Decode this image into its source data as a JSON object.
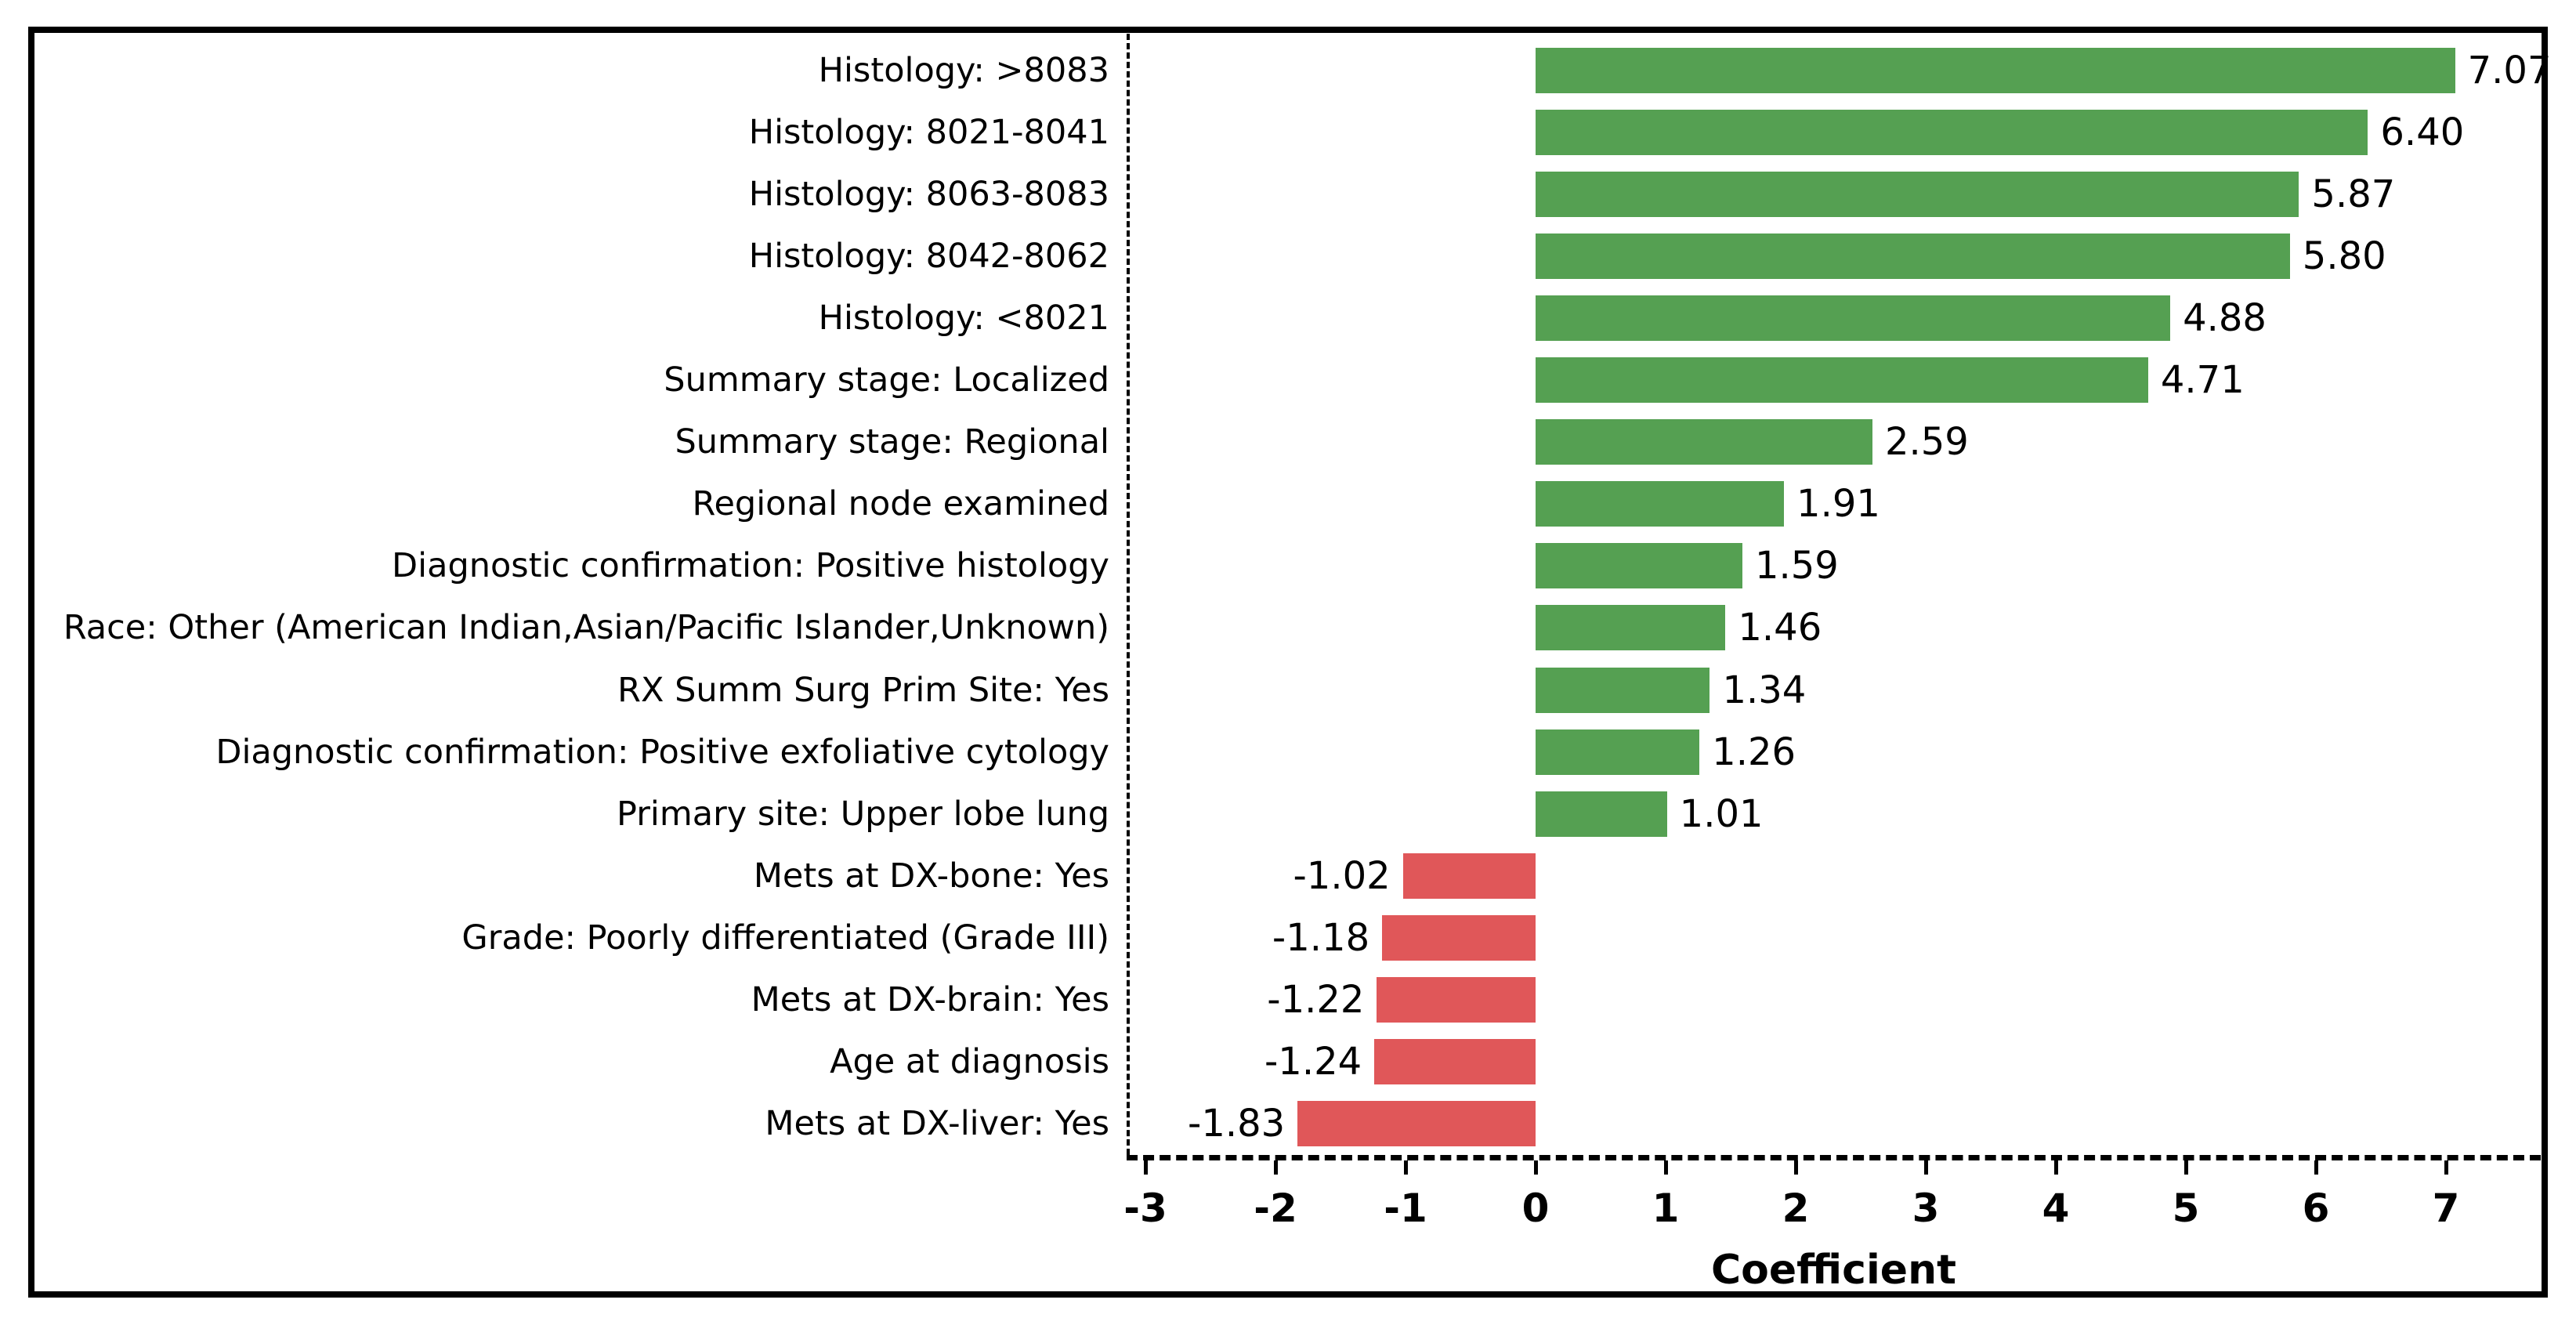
{
  "chart_data": {
    "type": "bar",
    "orientation": "horizontal",
    "title": "",
    "xlabel": "Coefficient",
    "ylabel": "",
    "xlim": [
      -3.14,
      7.73
    ],
    "xticks": [
      -3,
      -2,
      -1,
      0,
      1,
      2,
      3,
      4,
      5,
      6,
      7
    ],
    "grid": false,
    "legend": null,
    "value_labels_shown": true,
    "value_label_decimals": 2,
    "categories": [
      "Histology: >8083",
      "Histology: 8021-8041",
      "Histology: 8063-8083",
      "Histology: 8042-8062",
      "Histology: <8021",
      "Summary stage: Localized",
      "Summary stage: Regional",
      "Regional node examined",
      "Diagnostic confirmation: Positive histology",
      "Race: Other (American Indian,Asian/Pacific Islander,Unknown)",
      "RX Summ Surg Prim Site: Yes",
      "Diagnostic confirmation: Positive exfoliative cytology",
      "Primary site: Upper lobe lung",
      "Mets at DX-bone: Yes",
      "Grade: Poorly differentiated (Grade III)",
      "Mets at DX-brain: Yes",
      "Age at diagnosis",
      "Mets at DX-liver: Yes"
    ],
    "values": [
      7.07,
      6.4,
      5.87,
      5.8,
      4.88,
      4.71,
      2.59,
      1.91,
      1.59,
      1.46,
      1.34,
      1.26,
      1.01,
      -1.02,
      -1.18,
      -1.22,
      -1.24,
      -1.83
    ],
    "positive_color": "#55a052",
    "negative_color": "#e05759",
    "frame_color": "#000000",
    "text_color": "#000000",
    "background_color": "#ffffff"
  }
}
